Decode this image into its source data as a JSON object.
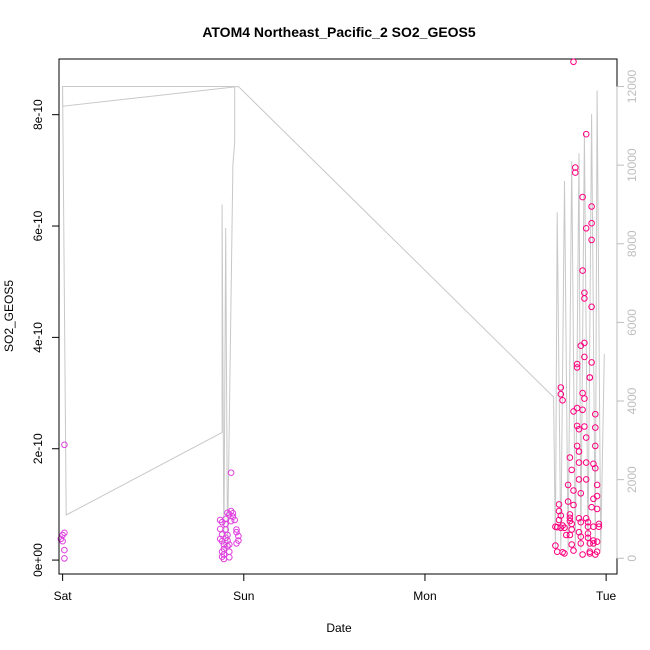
{
  "chart_data": {
    "type": "scatter",
    "title": "ATOM4 Northeast_Pacific_2 SO2_GEOS5",
    "xlabel": "Date",
    "ylabel": "SO2_GEOS5",
    "x_ticks": [
      {
        "value": 0,
        "label": "Sat"
      },
      {
        "value": 1,
        "label": "Sun"
      },
      {
        "value": 2,
        "label": "Mon"
      },
      {
        "value": 3,
        "label": "Tue"
      }
    ],
    "y_ticks": [
      {
        "value": 0,
        "label": "0e+00"
      },
      {
        "value": 2e-10,
        "label": "2e-10"
      },
      {
        "value": 4e-10,
        "label": "4e-10"
      },
      {
        "value": 6e-10,
        "label": "6e-10"
      },
      {
        "value": 8e-10,
        "label": "8e-10"
      }
    ],
    "y2_ticks": [
      {
        "value": 0,
        "label": "0"
      },
      {
        "value": 2000,
        "label": "2000"
      },
      {
        "value": 4000,
        "label": "4000"
      },
      {
        "value": 6000,
        "label": "6000"
      },
      {
        "value": 8000,
        "label": "8000"
      },
      {
        "value": 10000,
        "label": "10000"
      },
      {
        "value": 12000,
        "label": "12000"
      }
    ],
    "xlim": [
      -0.02,
      3.06
    ],
    "ylim": [
      -2.5e-11,
      9e-10
    ],
    "y2lim": [
      -400,
      12700
    ],
    "grid": false,
    "colors": {
      "points_early": "#e040e0",
      "points_late": "#ff0080",
      "altitude_line": "#c8c8c8",
      "right_axis": "#bebebe"
    },
    "points": [
      {
        "x": 0.01,
        "y": 2.07e-10
      },
      {
        "x": 0.01,
        "y": 4.9e-11
      },
      {
        "x": 0.0,
        "y": 4.5e-11
      },
      {
        "x": -0.01,
        "y": 3.8e-11
      },
      {
        "x": 0.0,
        "y": 3.4e-11
      },
      {
        "x": 0.01,
        "y": 1.8e-11
      },
      {
        "x": 0.01,
        "y": 3e-12
      },
      {
        "x": 0.87,
        "y": 7.2e-11
      },
      {
        "x": 0.88,
        "y": 6.8e-11
      },
      {
        "x": 0.87,
        "y": 5.6e-11
      },
      {
        "x": 0.88,
        "y": 4.6e-11
      },
      {
        "x": 0.87,
        "y": 3.8e-11
      },
      {
        "x": 0.88,
        "y": 3.4e-11
      },
      {
        "x": 0.89,
        "y": 2.8e-11
      },
      {
        "x": 0.88,
        "y": 1.5e-11
      },
      {
        "x": 0.88,
        "y": 6e-12
      },
      {
        "x": 0.89,
        "y": 2e-12
      },
      {
        "x": 0.89,
        "y": 1e-11
      },
      {
        "x": 0.89,
        "y": 2e-11
      },
      {
        "x": 0.9,
        "y": 7.4e-11
      },
      {
        "x": 0.9,
        "y": 6.5e-11
      },
      {
        "x": 0.9,
        "y": 5.5e-11
      },
      {
        "x": 0.91,
        "y": 4.5e-11
      },
      {
        "x": 0.91,
        "y": 3.5e-11
      },
      {
        "x": 0.91,
        "y": 2.5e-11
      },
      {
        "x": 0.92,
        "y": 1.5e-11
      },
      {
        "x": 0.92,
        "y": 5e-12
      },
      {
        "x": 0.93,
        "y": 1.57e-10
      },
      {
        "x": 0.93,
        "y": 8.8e-11
      },
      {
        "x": 0.94,
        "y": 8.4e-11
      },
      {
        "x": 0.94,
        "y": 7.8e-11
      },
      {
        "x": 0.93,
        "y": 7e-11
      },
      {
        "x": 0.92,
        "y": 8.2e-11
      },
      {
        "x": 0.91,
        "y": 8.5e-11
      },
      {
        "x": 0.95,
        "y": 7.2e-11
      },
      {
        "x": 0.96,
        "y": 5.5e-11
      },
      {
        "x": 0.96,
        "y": 5e-11
      },
      {
        "x": 0.97,
        "y": 4.3e-11
      },
      {
        "x": 0.97,
        "y": 3.5e-11
      },
      {
        "x": 0.96,
        "y": 3e-11
      },
      {
        "x": 0.92,
        "y": 2.8e-11
      },
      {
        "x": 0.9,
        "y": 4e-11
      },
      {
        "x": 2.72,
        "y": 6e-11
      },
      {
        "x": 2.73,
        "y": 1.5e-11
      },
      {
        "x": 2.72,
        "y": 2.6e-11
      },
      {
        "x": 2.74,
        "y": 1e-10
      },
      {
        "x": 2.74,
        "y": 8.8e-11
      },
      {
        "x": 2.75,
        "y": 3.1e-10
      },
      {
        "x": 2.75,
        "y": 2.98e-10
      },
      {
        "x": 2.76,
        "y": 2.87e-10
      },
      {
        "x": 2.75,
        "y": 8e-11
      },
      {
        "x": 2.74,
        "y": 7.2e-11
      },
      {
        "x": 2.76,
        "y": 6.2e-11
      },
      {
        "x": 2.77,
        "y": 5.8e-11
      },
      {
        "x": 2.75,
        "y": 5.8e-11
      },
      {
        "x": 2.73,
        "y": 5.9e-11
      },
      {
        "x": 2.78,
        "y": 4.5e-11
      },
      {
        "x": 2.76,
        "y": 1.4e-11
      },
      {
        "x": 2.77,
        "y": 1.2e-11
      },
      {
        "x": 2.79,
        "y": 1.35e-10
      },
      {
        "x": 2.79,
        "y": 1.05e-10
      },
      {
        "x": 2.8,
        "y": 8.2e-11
      },
      {
        "x": 2.8,
        "y": 7.6e-11
      },
      {
        "x": 2.8,
        "y": 7e-11
      },
      {
        "x": 2.81,
        "y": 6.5e-11
      },
      {
        "x": 2.81,
        "y": 5.5e-11
      },
      {
        "x": 2.8,
        "y": 4.5e-11
      },
      {
        "x": 2.81,
        "y": 2.8e-11
      },
      {
        "x": 2.82,
        "y": 1.7e-11
      },
      {
        "x": 2.8,
        "y": 1.84e-10
      },
      {
        "x": 2.81,
        "y": 1.62e-10
      },
      {
        "x": 2.82,
        "y": 1.25e-10
      },
      {
        "x": 2.82,
        "y": 9.9e-11
      },
      {
        "x": 2.82,
        "y": 2.67e-10
      },
      {
        "x": 2.83,
        "y": 7.05e-10
      },
      {
        "x": 2.83,
        "y": 6.96e-10
      },
      {
        "x": 2.82,
        "y": 8.95e-10
      },
      {
        "x": 2.84,
        "y": 3.52e-10
      },
      {
        "x": 2.84,
        "y": 3.46e-10
      },
      {
        "x": 2.84,
        "y": 2.73e-10
      },
      {
        "x": 2.84,
        "y": 2.41e-10
      },
      {
        "x": 2.85,
        "y": 2.35e-10
      },
      {
        "x": 2.84,
        "y": 2.05e-10
      },
      {
        "x": 2.85,
        "y": 1.95e-10
      },
      {
        "x": 2.85,
        "y": 1.75e-10
      },
      {
        "x": 2.85,
        "y": 1.45e-10
      },
      {
        "x": 2.86,
        "y": 1.2e-10
      },
      {
        "x": 2.85,
        "y": 7.5e-11
      },
      {
        "x": 2.86,
        "y": 6.8e-11
      },
      {
        "x": 2.85,
        "y": 5e-11
      },
      {
        "x": 2.86,
        "y": 4.2e-11
      },
      {
        "x": 2.86,
        "y": 3e-11
      },
      {
        "x": 2.87,
        "y": 1e-11
      },
      {
        "x": 2.86,
        "y": 3.85e-10
      },
      {
        "x": 2.87,
        "y": 6.52e-10
      },
      {
        "x": 2.87,
        "y": 5.2e-10
      },
      {
        "x": 2.88,
        "y": 4.8e-10
      },
      {
        "x": 2.88,
        "y": 4.7e-10
      },
      {
        "x": 2.88,
        "y": 3.9e-10
      },
      {
        "x": 2.88,
        "y": 3.65e-10
      },
      {
        "x": 2.87,
        "y": 3e-10
      },
      {
        "x": 2.88,
        "y": 2.9e-10
      },
      {
        "x": 2.87,
        "y": 2.7e-10
      },
      {
        "x": 2.88,
        "y": 2.4e-10
      },
      {
        "x": 2.89,
        "y": 7.65e-10
      },
      {
        "x": 2.89,
        "y": 5.96e-10
      },
      {
        "x": 2.89,
        "y": 2.2e-10
      },
      {
        "x": 2.89,
        "y": 1.75e-10
      },
      {
        "x": 2.89,
        "y": 1.45e-10
      },
      {
        "x": 2.89,
        "y": 7.5e-11
      },
      {
        "x": 2.9,
        "y": 6.8e-11
      },
      {
        "x": 2.9,
        "y": 6e-11
      },
      {
        "x": 2.9,
        "y": 4.8e-11
      },
      {
        "x": 2.9,
        "y": 4e-11
      },
      {
        "x": 2.91,
        "y": 3e-11
      },
      {
        "x": 2.91,
        "y": 1.5e-11
      },
      {
        "x": 2.91,
        "y": 3.28e-10
      },
      {
        "x": 2.91,
        "y": 3.28e-10
      },
      {
        "x": 2.92,
        "y": 6.35e-10
      },
      {
        "x": 2.92,
        "y": 6.05e-10
      },
      {
        "x": 2.92,
        "y": 5.75e-10
      },
      {
        "x": 2.92,
        "y": 4.55e-10
      },
      {
        "x": 2.92,
        "y": 3.55e-10
      },
      {
        "x": 2.93,
        "y": 1.73e-10
      },
      {
        "x": 2.93,
        "y": 1.1e-10
      },
      {
        "x": 2.93,
        "y": 3.5e-11
      },
      {
        "x": 2.94,
        "y": 2.62e-10
      },
      {
        "x": 2.94,
        "y": 2.38e-10
      },
      {
        "x": 2.94,
        "y": 2.05e-10
      },
      {
        "x": 2.94,
        "y": 1.65e-10
      },
      {
        "x": 2.95,
        "y": 1.35e-10
      },
      {
        "x": 2.95,
        "y": 1.15e-10
      },
      {
        "x": 2.95,
        "y": 9.2e-11
      },
      {
        "x": 2.96,
        "y": 6.5e-11
      },
      {
        "x": 2.96,
        "y": 6e-11
      },
      {
        "x": 2.95,
        "y": 3.3e-11
      },
      {
        "x": 2.95,
        "y": 1.5e-11
      },
      {
        "x": 2.94,
        "y": 1e-11
      },
      {
        "x": 2.93,
        "y": 3e-11
      },
      {
        "x": 2.93,
        "y": 6e-11
      },
      {
        "x": 2.92,
        "y": 9.5e-11
      },
      {
        "x": 2.91,
        "y": 1.2e-11
      }
    ],
    "altitude_line": [
      [
        0.0,
        12000
      ],
      [
        0.02,
        1100
      ],
      [
        0.88,
        3200
      ],
      [
        0.88,
        9000
      ],
      [
        0.89,
        200
      ],
      [
        0.9,
        8400
      ],
      [
        0.91,
        200
      ],
      [
        0.94,
        10000
      ],
      [
        0.95,
        10600
      ],
      [
        0.95,
        12000
      ],
      [
        0.0,
        12000
      ],
      [
        0.0,
        11500
      ],
      [
        0.97,
        12000
      ],
      [
        2.71,
        4100
      ],
      [
        2.72,
        200
      ],
      [
        2.73,
        8800
      ],
      [
        2.75,
        200
      ],
      [
        2.77,
        9600
      ],
      [
        2.79,
        200
      ],
      [
        2.81,
        10100
      ],
      [
        2.83,
        200
      ],
      [
        2.85,
        10300
      ],
      [
        2.86,
        200
      ],
      [
        2.88,
        10800
      ],
      [
        2.9,
        200
      ],
      [
        2.92,
        11300
      ],
      [
        2.94,
        200
      ],
      [
        2.95,
        11900
      ],
      [
        2.97,
        200
      ],
      [
        2.99,
        5200
      ]
    ]
  }
}
